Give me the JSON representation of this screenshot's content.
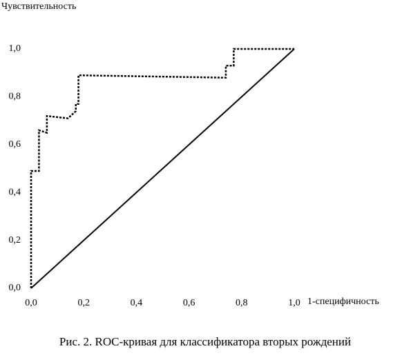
{
  "chart_data": {
    "type": "line",
    "title": "Рис. 2. ROC-кривая для классификатора вторых рождений",
    "y_label": "Чувствительность",
    "x_label": "1-специфичность",
    "xlim": [
      0,
      1
    ],
    "ylim": [
      0,
      1
    ],
    "xticks": [
      {
        "value": 0,
        "label": "0,0"
      },
      {
        "value": 0.2,
        "label": "0,2"
      },
      {
        "value": 0.4,
        "label": "0,4"
      },
      {
        "value": 0.6,
        "label": "0,6"
      },
      {
        "value": 0.8,
        "label": "0,8"
      },
      {
        "value": 1,
        "label": "1,0"
      }
    ],
    "yticks": [
      {
        "value": 0,
        "label": "0,0"
      },
      {
        "value": 0.2,
        "label": "0,2"
      },
      {
        "value": 0.4,
        "label": "0,4"
      },
      {
        "value": 0.6,
        "label": "0,6"
      },
      {
        "value": 0.8,
        "label": "0,8"
      },
      {
        "value": 1,
        "label": "1,0"
      }
    ],
    "grid": false,
    "series": [
      {
        "color": "#000000",
        "line_style": "dashed",
        "x": [
          0,
          0,
          0.03,
          0.03,
          0.06,
          0.06,
          0.14,
          0.17,
          0.17,
          0.18,
          0.18,
          0.73,
          0.74,
          0.74,
          0.77,
          0.77,
          1
        ],
        "values": [
          0,
          0.49,
          0.49,
          0.66,
          0.65,
          0.72,
          0.71,
          0.74,
          0.77,
          0.77,
          0.89,
          0.88,
          0.88,
          0.93,
          0.93,
          1,
          1
        ]
      },
      {
        "color": "#000000",
        "line_style": "solid",
        "x": [
          0,
          0.03,
          0.08,
          0.25,
          0.5,
          0.75,
          1
        ],
        "values": [
          0,
          0.03,
          0.08,
          0.25,
          0.5,
          0.75,
          1
        ]
      }
    ]
  }
}
